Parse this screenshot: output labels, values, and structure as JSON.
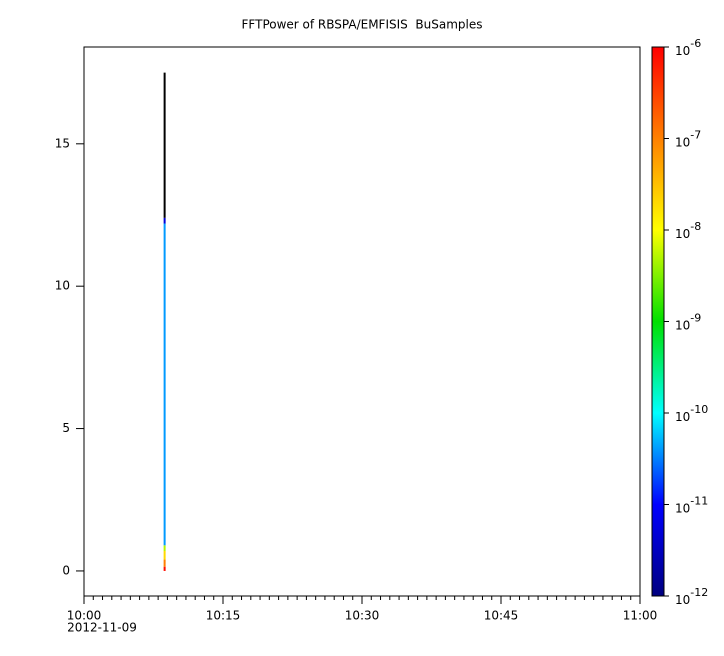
{
  "chart_data": {
    "type": "spectrogram",
    "title": "FFTPower of RBSPA/EMFISIS  BuSamples",
    "x": [
      8.7
    ],
    "y_bins": [
      0,
      0.15,
      0.4,
      0.7,
      0.9,
      12.2,
      12.4,
      17.5
    ],
    "z": [
      8e-07,
      1e-07,
      2e-08,
      5e-09,
      4e-11,
      5e-12,
      1e-13
    ],
    "xlim": [
      0,
      60
    ],
    "xticks": [
      {
        "value": 0,
        "label": "10:00"
      },
      {
        "value": 15,
        "label": "10:15"
      },
      {
        "value": 30,
        "label": "10:30"
      },
      {
        "value": 45,
        "label": "10:45"
      },
      {
        "value": 60,
        "label": "11:00"
      }
    ],
    "x_minor_step": 1,
    "date_label": "2012-11-09",
    "ylim": [
      -0.88,
      18.4
    ],
    "yticks": [
      0,
      5,
      10,
      15
    ],
    "zlim": [
      1e-12,
      1e-06
    ],
    "log_z": true,
    "zticks": [
      {
        "value": 1e-12,
        "label": "10",
        "sup": "-12"
      },
      {
        "value": 1e-11,
        "label": "10",
        "sup": "-11"
      },
      {
        "value": 1e-10,
        "label": "10",
        "sup": "-10"
      },
      {
        "value": 1e-09,
        "label": "10",
        "sup": "-9"
      },
      {
        "value": 1e-08,
        "label": "10",
        "sup": "-8"
      },
      {
        "value": 1e-07,
        "label": "10",
        "sup": "-7"
      },
      {
        "value": 1e-06,
        "label": "10",
        "sup": "-6"
      }
    ],
    "colormap": [
      "#000080",
      "#0000ff",
      "#00ffff",
      "#00e000",
      "#ffff00",
      "#ff8000",
      "#ff0000"
    ],
    "under_color": "#000000"
  }
}
